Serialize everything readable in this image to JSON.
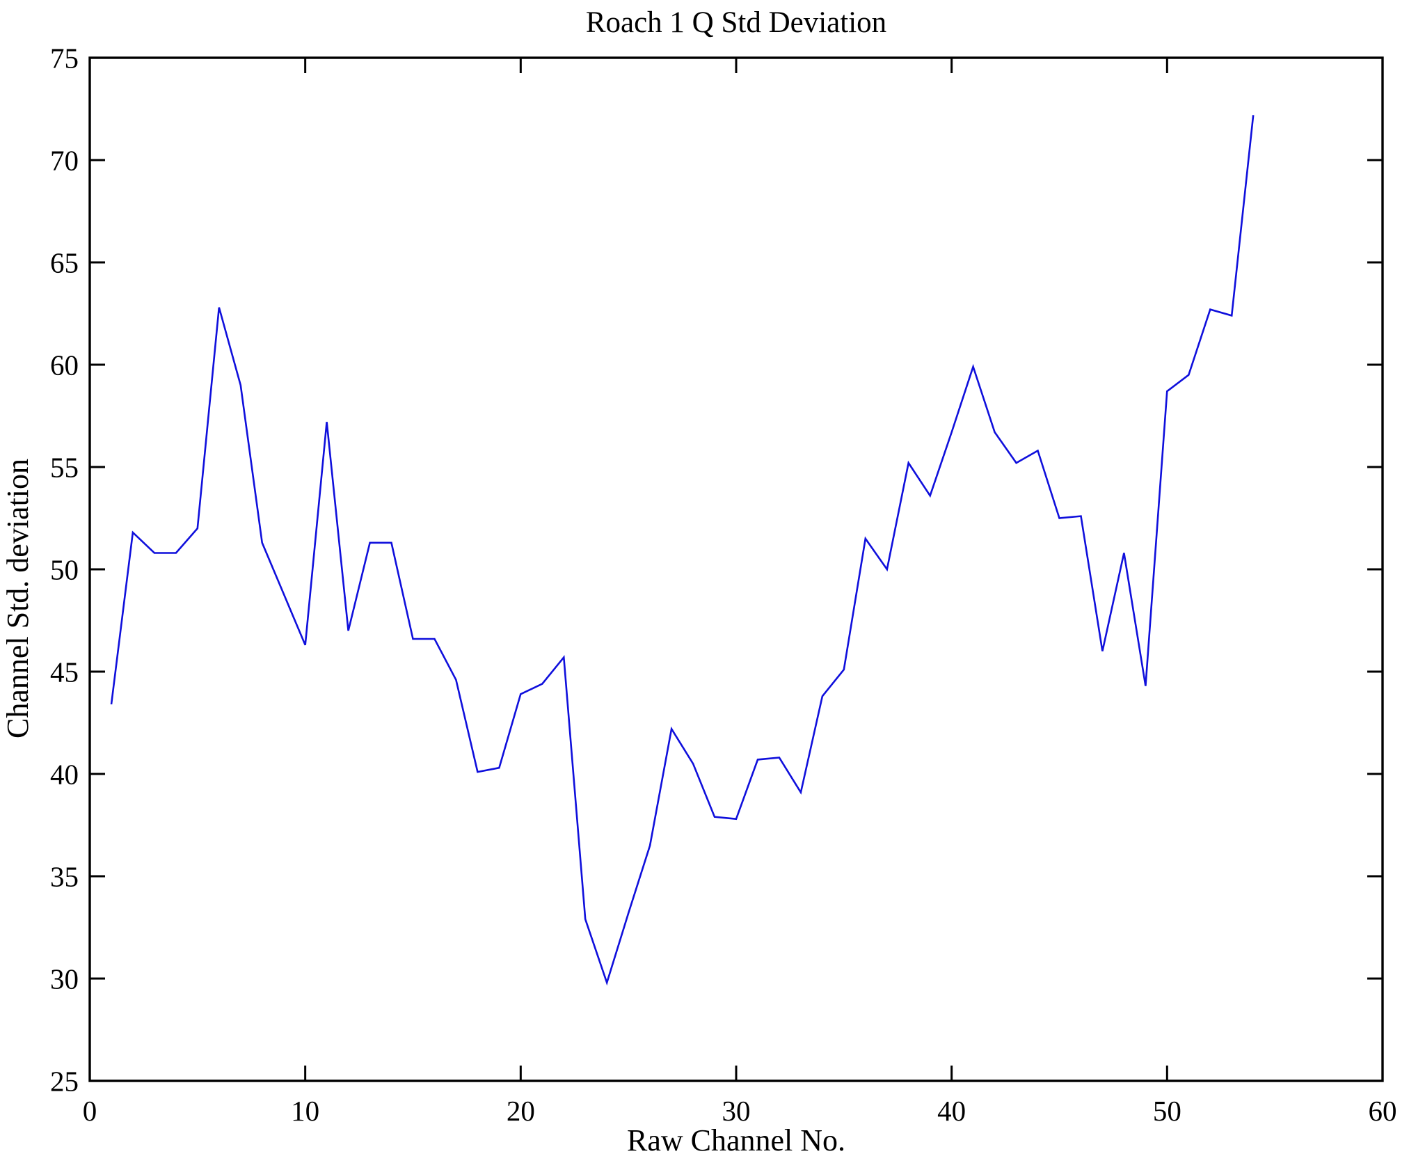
{
  "chart_data": {
    "type": "line",
    "title": "Roach 1 Q Std Deviation",
    "xlabel": "Raw Channel No.",
    "ylabel": "Channel Std. deviation",
    "xlim": [
      0,
      60
    ],
    "ylim": [
      25,
      75
    ],
    "x_ticks": [
      0,
      10,
      20,
      30,
      40,
      50,
      60
    ],
    "y_ticks": [
      25,
      30,
      35,
      40,
      45,
      50,
      55,
      60,
      65,
      70,
      75
    ],
    "legend": "none",
    "grid": "off",
    "line_color": "#0f0fdc",
    "axis_color": "#000000",
    "x": [
      1,
      2,
      3,
      4,
      5,
      6,
      7,
      8,
      9,
      10,
      11,
      12,
      13,
      14,
      15,
      16,
      17,
      18,
      19,
      20,
      21,
      22,
      23,
      24,
      25,
      26,
      27,
      28,
      29,
      30,
      31,
      32,
      33,
      34,
      35,
      36,
      37,
      38,
      39,
      40,
      41,
      42,
      43,
      44,
      45,
      46,
      47,
      48,
      49,
      50,
      51,
      52,
      53,
      54
    ],
    "values": [
      43.4,
      51.8,
      50.8,
      50.8,
      52.0,
      62.8,
      59.0,
      51.3,
      48.8,
      46.3,
      57.2,
      47.0,
      51.3,
      51.3,
      46.6,
      46.6,
      44.6,
      40.1,
      40.3,
      43.9,
      44.4,
      45.7,
      32.9,
      29.8,
      33.2,
      36.5,
      42.2,
      40.5,
      37.9,
      37.8,
      40.7,
      40.8,
      39.1,
      43.8,
      45.1,
      51.5,
      50.0,
      55.2,
      53.6,
      56.7,
      59.9,
      56.7,
      55.2,
      55.8,
      52.5,
      52.6,
      46.0,
      50.8,
      44.3,
      58.7,
      59.5,
      62.7,
      62.4,
      72.2
    ]
  }
}
